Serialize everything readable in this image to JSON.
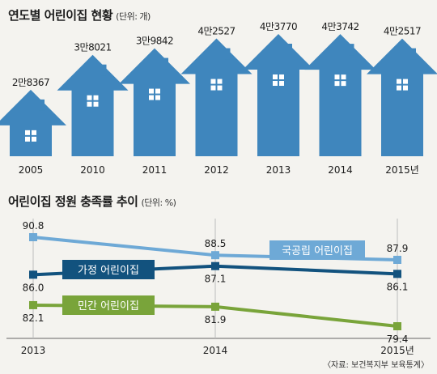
{
  "source": "〈자료: 보건복지부 보육통계〉",
  "colors": {
    "house": "#3f86bd",
    "national": "#6ea9d6",
    "home": "#12527e",
    "private": "#79a43a",
    "axis": "#666666"
  },
  "chart_data": [
    {
      "type": "bar",
      "title": "연도별 어린이집 현황",
      "unit_note": "(단위: 개)",
      "categories": [
        "2005",
        "2010",
        "2011",
        "2012",
        "2013",
        "2014",
        "2015년"
      ],
      "value_labels": [
        "2만8367",
        "3만8021",
        "3만9842",
        "4만2527",
        "4만3770",
        "4만3742",
        "4만2517"
      ],
      "values": [
        28367,
        38021,
        39842,
        42527,
        43770,
        43742,
        42517
      ],
      "marker": "house-icon"
    },
    {
      "type": "line",
      "title": "어린이집 정원 충족률 추이",
      "unit_note": "(단위: %)",
      "x": [
        "2013",
        "2014",
        "2015년"
      ],
      "ylim": [
        78,
        92
      ],
      "series": [
        {
          "name": "국공립 어린이집",
          "values": [
            90.8,
            88.5,
            87.9
          ],
          "value_labels": [
            "90.8",
            "88.5",
            "87.9"
          ],
          "color": "#6ea9d6",
          "label_pos": "above"
        },
        {
          "name": "가정 어린이집",
          "values": [
            86.0,
            87.1,
            86.1
          ],
          "value_labels": [
            "86.0",
            "87.1",
            "86.1"
          ],
          "color": "#12527e",
          "label_pos": "below"
        },
        {
          "name": "민간 어린이집",
          "values": [
            82.1,
            81.9,
            79.4
          ],
          "value_labels": [
            "82.1",
            "81.9",
            "79.4"
          ],
          "color": "#79a43a",
          "label_pos": "below"
        }
      ]
    }
  ]
}
